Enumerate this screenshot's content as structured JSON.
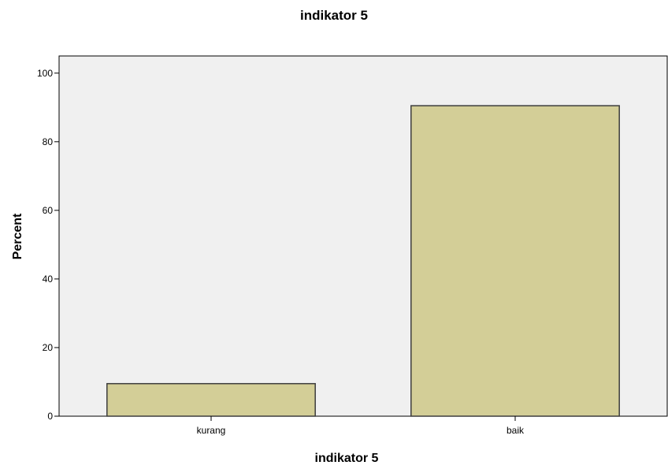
{
  "chart_data": {
    "type": "bar",
    "title": "indikator 5",
    "xlabel": "indikator 5",
    "ylabel": "Percent",
    "categories": [
      "kurang",
      "baik"
    ],
    "values": [
      9.5,
      90.5
    ],
    "ylim": [
      0,
      105
    ],
    "yticks": [
      "0",
      "20",
      "40",
      "60",
      "80",
      "100"
    ],
    "grid": false,
    "legend": "none",
    "colors": {
      "plot_background": "#f0f0f0",
      "bar_fill": "#d3ce97",
      "bar_stroke": "#3d3d3d",
      "axis": "#000000"
    }
  }
}
